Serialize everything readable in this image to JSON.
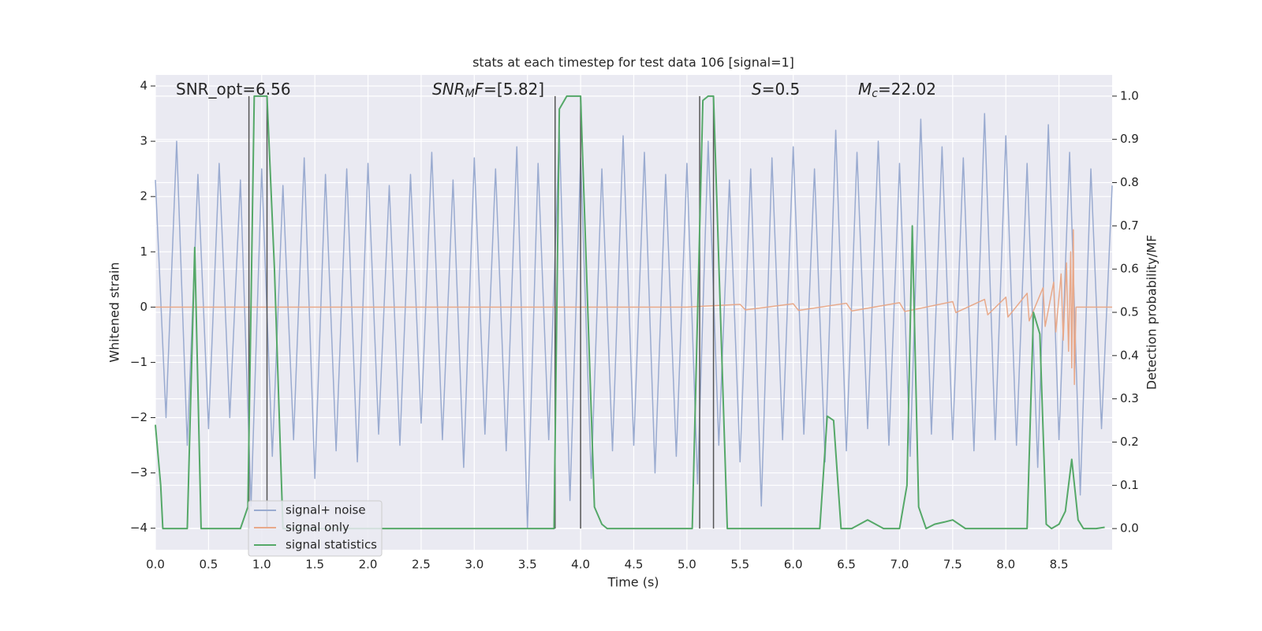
{
  "chart_data": {
    "type": "line",
    "title": "stats at each timestep for test data 106 [signal=1]",
    "xlabel": "Time (s)",
    "ylabel": "Whitened strain",
    "y2label": "Detection probability/MF",
    "xlim": [
      0,
      9.0
    ],
    "ylim": [
      -4.39,
      4.2
    ],
    "y2lim": [
      -0.049,
      1.049
    ],
    "xticks": [
      {
        "value": 0,
        "label": "0.0"
      },
      0.5,
      {
        "value": 1,
        "label": "1.0"
      },
      1.5,
      {
        "value": 2,
        "label": "2.0"
      },
      2.5,
      {
        "value": 3,
        "label": "3.0"
      },
      3.5,
      {
        "value": 4,
        "label": "4.0"
      },
      4.5,
      {
        "value": 5,
        "label": "5.0"
      },
      5.5,
      {
        "value": 6,
        "label": "6.0"
      },
      6.5,
      {
        "value": 7,
        "label": "7.0"
      },
      7.5,
      {
        "value": 8,
        "label": "8.0"
      },
      8.5
    ],
    "yticks": [
      {
        "value": -4,
        "label": "−4"
      },
      {
        "value": -3,
        "label": "−3"
      },
      {
        "value": -2,
        "label": "−2"
      },
      {
        "value": -1,
        "label": "−1"
      },
      0,
      1,
      2,
      3,
      4
    ],
    "y2ticks": [
      {
        "value": 0,
        "label": "0.0"
      },
      0.1,
      0.2,
      0.3,
      0.4,
      0.5,
      0.6,
      0.7,
      0.8,
      0.9,
      {
        "value": 1,
        "label": "1.0"
      }
    ],
    "grid": true,
    "annotations": [
      [
        {
          "text": "SNR_opt=6.56"
        }
      ],
      [
        {
          "text": "SNR",
          "italic": true
        },
        {
          "text": "M",
          "italic": true,
          "sub": true
        },
        {
          "text": "F",
          "italic": true
        },
        {
          "text": "=[5.82]"
        }
      ],
      [
        {
          "text": "S",
          "italic": true
        },
        {
          "text": "=0.5"
        }
      ],
      [
        {
          "text": "M",
          "italic": true
        },
        {
          "text": "c",
          "italic": true,
          "sub": true
        },
        {
          "text": "=22.02"
        }
      ]
    ],
    "vlines": {
      "color": "#555555",
      "x": [
        0.88,
        1.05,
        3.76,
        4.0,
        5.12,
        5.25
      ],
      "y2": [
        0,
        1
      ]
    },
    "series": [
      {
        "name": "signal+ noise",
        "color": "#9aabd0",
        "x": [
          0,
          0.1,
          0.2,
          0.3,
          0.4,
          0.5,
          0.6,
          0.7,
          0.8,
          0.9,
          1.0,
          1.1,
          1.2,
          1.3,
          1.4,
          1.5,
          1.6,
          1.7,
          1.8,
          1.9,
          2.0,
          2.1,
          2.2,
          2.3,
          2.4,
          2.5,
          2.6,
          2.7,
          2.8,
          2.9,
          3.0,
          3.1,
          3.2,
          3.3,
          3.4,
          3.5,
          3.6,
          3.7,
          3.8,
          3.9,
          4.0,
          4.1,
          4.2,
          4.3,
          4.4,
          4.5,
          4.6,
          4.7,
          4.8,
          4.9,
          5.0,
          5.1,
          5.2,
          5.3,
          5.4,
          5.5,
          5.6,
          5.7,
          5.8,
          5.9,
          6.0,
          6.1,
          6.2,
          6.3,
          6.4,
          6.5,
          6.6,
          6.7,
          6.8,
          6.9,
          7.0,
          7.1,
          7.2,
          7.3,
          7.4,
          7.5,
          7.6,
          7.7,
          7.8,
          7.9,
          8.0,
          8.1,
          8.2,
          8.3,
          8.4,
          8.5,
          8.6,
          8.7,
          8.8,
          8.9,
          9.0
        ],
        "values": [
          2.3,
          -2.0,
          3.0,
          -2.5,
          2.4,
          -2.2,
          2.6,
          -2.0,
          2.3,
          -3.6,
          2.5,
          -2.7,
          2.2,
          -2.4,
          2.7,
          -3.1,
          2.4,
          -2.6,
          2.5,
          -2.8,
          2.6,
          -2.3,
          2.2,
          -2.5,
          2.4,
          -2.1,
          2.8,
          -2.4,
          2.3,
          -2.9,
          2.7,
          -2.3,
          2.5,
          -2.6,
          2.9,
          -4.0,
          2.6,
          -2.4,
          3.2,
          -3.5,
          2.7,
          -3.1,
          2.5,
          -2.6,
          3.1,
          -2.5,
          2.8,
          -3.0,
          2.4,
          -2.7,
          2.6,
          -3.2,
          3.0,
          -2.5,
          2.3,
          -2.8,
          2.5,
          -3.6,
          2.7,
          -2.4,
          2.9,
          -2.3,
          2.5,
          -2.8,
          3.2,
          -2.6,
          2.8,
          -2.2,
          3.0,
          -2.5,
          2.6,
          -2.7,
          3.4,
          -2.3,
          2.9,
          -2.4,
          2.7,
          -2.6,
          3.5,
          -2.4,
          3.1,
          -2.5,
          2.6,
          -2.9,
          3.3,
          -2.4,
          2.8,
          -3.4,
          2.5,
          -2.2,
          2.2
        ]
      },
      {
        "name": "signal only",
        "color": "#e8a98a",
        "x": [
          0,
          5.0,
          5.5,
          5.55,
          6.0,
          6.05,
          6.5,
          6.55,
          7.0,
          7.05,
          7.5,
          7.53,
          7.8,
          7.83,
          8.0,
          8.02,
          8.2,
          8.22,
          8.35,
          8.37,
          8.45,
          8.47,
          8.52,
          8.54,
          8.57,
          8.59,
          8.61,
          8.62,
          8.635,
          8.645,
          8.66,
          9.0
        ],
        "values": [
          0,
          0,
          0.05,
          -0.05,
          0.06,
          -0.06,
          0.07,
          -0.07,
          0.08,
          -0.08,
          0.1,
          -0.1,
          0.14,
          -0.14,
          0.18,
          -0.18,
          0.25,
          -0.25,
          0.35,
          -0.35,
          0.45,
          -0.45,
          0.6,
          -0.6,
          0.8,
          -0.8,
          1.0,
          -1.1,
          1.4,
          -1.4,
          0,
          0
        ]
      },
      {
        "name": "signal statistics",
        "color": "#55a868",
        "axis": "y2",
        "x": [
          0,
          0.05,
          0.07,
          0.3,
          0.37,
          0.43,
          0.8,
          0.87,
          0.93,
          1.05,
          1.12,
          1.2,
          3.75,
          3.8,
          3.87,
          4.0,
          4.13,
          4.2,
          4.25,
          5.05,
          5.15,
          5.2,
          5.25,
          5.38,
          6.25,
          6.32,
          6.38,
          6.45,
          6.55,
          6.7,
          6.85,
          7.0,
          7.07,
          7.12,
          7.18,
          7.25,
          7.33,
          7.42,
          7.5,
          7.62,
          8.2,
          8.26,
          8.32,
          8.38,
          8.43,
          8.5,
          8.56,
          8.62,
          8.68,
          8.73,
          8.85,
          8.93
        ],
        "values": [
          0.24,
          0.1,
          0,
          0,
          0.65,
          0,
          0,
          0.05,
          1.0,
          1.0,
          0.6,
          0,
          0,
          0.97,
          1.0,
          1.0,
          0.05,
          0.01,
          0,
          0,
          0.99,
          1.0,
          1.0,
          0,
          0,
          0.26,
          0.25,
          0,
          0,
          0.02,
          0,
          0,
          0.1,
          0.7,
          0.05,
          0,
          0.01,
          0.015,
          0.02,
          0,
          0,
          0.5,
          0.45,
          0.01,
          0,
          0.01,
          0.04,
          0.16,
          0.02,
          0,
          0,
          0.003
        ]
      }
    ]
  }
}
